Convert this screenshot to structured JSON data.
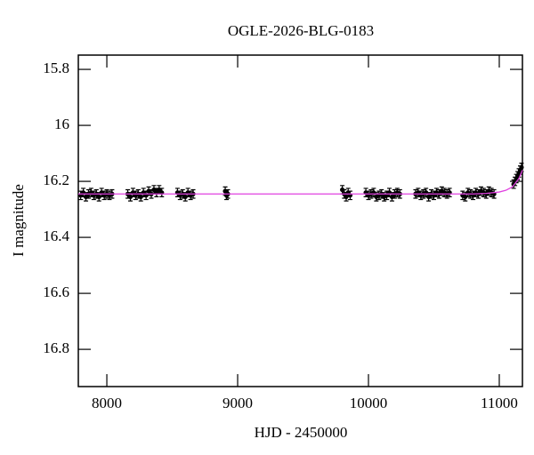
{
  "chart_data": {
    "type": "scatter",
    "title": "OGLE-2026-BLG-0183",
    "x_label": "HJD - 2450000",
    "y_label": "I magnitude",
    "xlim": [
      7782,
      11177
    ],
    "ylim": [
      15.749,
      16.933
    ],
    "y_inverted": true,
    "xticks": [
      8000,
      9000,
      10000,
      11000
    ],
    "yticks": [
      15.8,
      16,
      16.2,
      16.4,
      16.6,
      16.8
    ],
    "series": [
      {
        "type": "errorbar",
        "color": "#000000",
        "yerr": 0.015,
        "x": [
          7800,
          7820,
          7840,
          7860,
          7880,
          7900,
          7920,
          7940,
          7960,
          7980,
          8000,
          8020,
          8040,
          8160,
          8180,
          8200,
          8220,
          8240,
          8260,
          8280,
          8300,
          8320,
          8340,
          8360,
          8380,
          8400,
          8420,
          8540,
          8560,
          8580,
          8600,
          8620,
          8640,
          8660,
          8905,
          8915,
          8925,
          9800,
          9815,
          9830,
          9845,
          9860,
          9980,
          10000,
          10020,
          10040,
          10060,
          10080,
          10100,
          10120,
          10140,
          10160,
          10180,
          10200,
          10220,
          10240,
          10360,
          10380,
          10400,
          10420,
          10440,
          10460,
          10480,
          10500,
          10520,
          10540,
          10560,
          10580,
          10600,
          10620,
          10720,
          10740,
          10760,
          10780,
          10800,
          10820,
          10840,
          10860,
          10880,
          10900,
          10920,
          10940,
          10960,
          11110,
          11120,
          11130,
          11140,
          11150,
          11160,
          11170
        ],
        "values": [
          16.25,
          16.24,
          16.255,
          16.245,
          16.24,
          16.25,
          16.245,
          16.255,
          16.24,
          16.25,
          16.245,
          16.25,
          16.245,
          16.245,
          16.255,
          16.24,
          16.25,
          16.245,
          16.255,
          16.24,
          16.25,
          16.235,
          16.245,
          16.23,
          16.24,
          16.23,
          16.24,
          16.24,
          16.25,
          16.245,
          16.255,
          16.24,
          16.25,
          16.245,
          16.235,
          16.25,
          16.245,
          16.23,
          16.245,
          16.255,
          16.24,
          16.25,
          16.24,
          16.25,
          16.245,
          16.24,
          16.255,
          16.25,
          16.245,
          16.255,
          16.25,
          16.24,
          16.255,
          16.245,
          16.24,
          16.245,
          16.245,
          16.24,
          16.25,
          16.245,
          16.24,
          16.255,
          16.245,
          16.25,
          16.24,
          16.245,
          16.235,
          16.24,
          16.245,
          16.24,
          16.25,
          16.255,
          16.24,
          16.245,
          16.25,
          16.24,
          16.245,
          16.235,
          16.24,
          16.245,
          16.235,
          16.24,
          16.245,
          16.21,
          16.2,
          16.19,
          16.18,
          16.17,
          16.16,
          16.15
        ]
      },
      {
        "type": "line",
        "color": "#e040e0",
        "x": [
          7782,
          10800,
          10900,
          11000,
          11050,
          11100,
          11150,
          11177
        ],
        "values": [
          16.245,
          16.245,
          16.243,
          16.238,
          16.232,
          16.22,
          16.19,
          16.16
        ]
      }
    ]
  }
}
